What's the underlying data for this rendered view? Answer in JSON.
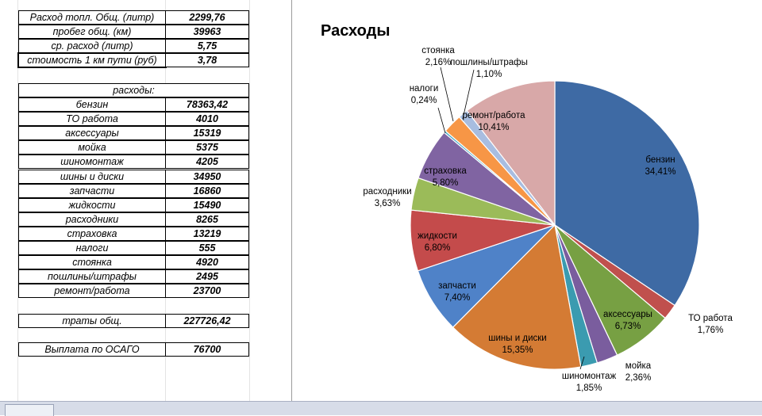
{
  "summary": {
    "rows": [
      {
        "label": "Расход топл. Общ. (литр)",
        "value": "2299,76"
      },
      {
        "label": "пробег общ. (км)",
        "value": "39963"
      },
      {
        "label": "ср. расход (литр)",
        "value": "5,75"
      },
      {
        "label": "стоимость 1 км пути (руб)",
        "value": "3,78"
      }
    ]
  },
  "expenses": {
    "header": "расходы:",
    "rows": [
      {
        "label": "бензин",
        "value": "78363,42"
      },
      {
        "label": "ТО работа",
        "value": "4010"
      },
      {
        "label": "аксессуары",
        "value": "15319"
      },
      {
        "label": "мойка",
        "value": "5375"
      },
      {
        "label": "шиномонтаж",
        "value": "4205"
      },
      {
        "label": "шины и диски",
        "value": "34950"
      },
      {
        "label": "запчасти",
        "value": "16860"
      },
      {
        "label": "жидкости",
        "value": "15490"
      },
      {
        "label": "расходники",
        "value": "8265"
      },
      {
        "label": "страховка",
        "value": "13219"
      },
      {
        "label": "налоги",
        "value": "555"
      },
      {
        "label": "стоянка",
        "value": "4920"
      },
      {
        "label": "пошлины/штрафы",
        "value": "2495"
      },
      {
        "label": "ремонт/работа",
        "value": "23700"
      }
    ]
  },
  "total": {
    "label": "траты общ.",
    "value": "227726,42"
  },
  "osago": {
    "label": "Выплата по ОСАГО",
    "value": "76700"
  },
  "chart_data": {
    "type": "pie",
    "title": "Расходы",
    "categories": [
      "бензин",
      "ТО работа",
      "аксессуары",
      "мойка",
      "шиномонтаж",
      "шины и диски",
      "запчасти",
      "жидкости",
      "расходники",
      "страховка",
      "налоги",
      "стоянка",
      "пошлины/штрафы",
      "ремонт/работа"
    ],
    "values": [
      34.41,
      1.76,
      6.73,
      2.36,
      1.85,
      15.35,
      7.4,
      6.8,
      3.63,
      5.8,
      0.24,
      2.16,
      1.1,
      10.41
    ],
    "labels": [
      "34,41%",
      "1,76%",
      "6,73%",
      "2,36%",
      "1,85%",
      "15,35%",
      "7,40%",
      "6,80%",
      "3,63%",
      "5,80%",
      "0,24%",
      "2,16%",
      "1,10%",
      "10,41%"
    ],
    "colors": [
      "#3e6aa4",
      "#c0504d",
      "#77a043",
      "#7a5d9e",
      "#3b9bb0",
      "#d47b34",
      "#4f82c8",
      "#c44b4b",
      "#9bbb59",
      "#8064a2",
      "#4bacc6",
      "#f79646",
      "#a8bde0",
      "#d8a8a8"
    ],
    "start_angle_deg": 0,
    "direction": "clockwise"
  }
}
